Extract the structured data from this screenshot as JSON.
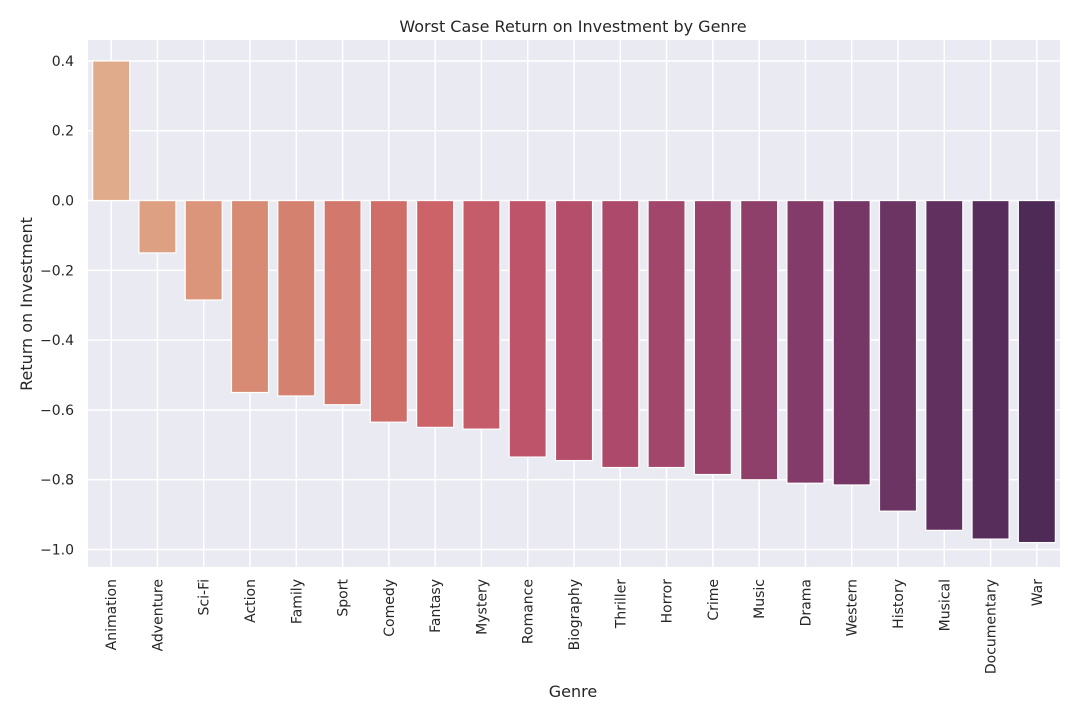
{
  "chart_data": {
    "type": "bar",
    "title": "Worst Case Return on Investment by Genre",
    "xlabel": "Genre",
    "ylabel": "Return on Investment",
    "ylim": [
      -1.05,
      0.46
    ],
    "yticks": [
      "0.4",
      "0.2",
      "0.0",
      "−0.2",
      "−0.4",
      "−0.6",
      "−0.8",
      "−1.0"
    ],
    "ytick_values": [
      0.4,
      0.2,
      0.0,
      -0.2,
      -0.4,
      -0.6,
      -0.8,
      -1.0
    ],
    "grid": true,
    "categories": [
      "Animation",
      "Adventure",
      "Sci-Fi",
      "Action",
      "Family",
      "Sport",
      "Comedy",
      "Fantasy",
      "Mystery",
      "Romance",
      "Biography",
      "Thriller",
      "Horror",
      "Crime",
      "Music",
      "Drama",
      "Western",
      "History",
      "Musical",
      "Documentary",
      "War"
    ],
    "values": [
      0.4,
      -0.15,
      -0.285,
      -0.55,
      -0.56,
      -0.585,
      -0.635,
      -0.65,
      -0.655,
      -0.735,
      -0.745,
      -0.765,
      -0.765,
      -0.785,
      -0.8,
      -0.81,
      -0.815,
      -0.89,
      -0.945,
      -0.97,
      -0.98
    ],
    "colors": [
      "#e0ab8b",
      "#dda083",
      "#da957b",
      "#d78a74",
      "#d4816f",
      "#d2786c",
      "#cf6d69",
      "#cb6368",
      "#c55c69",
      "#be546a",
      "#b54e6b",
      "#ad4a6b",
      "#a3466c",
      "#99436b",
      "#8e406b",
      "#833c6a",
      "#773766",
      "#6b3462",
      "#61305f",
      "#572d5b",
      "#4e2a57"
    ]
  }
}
